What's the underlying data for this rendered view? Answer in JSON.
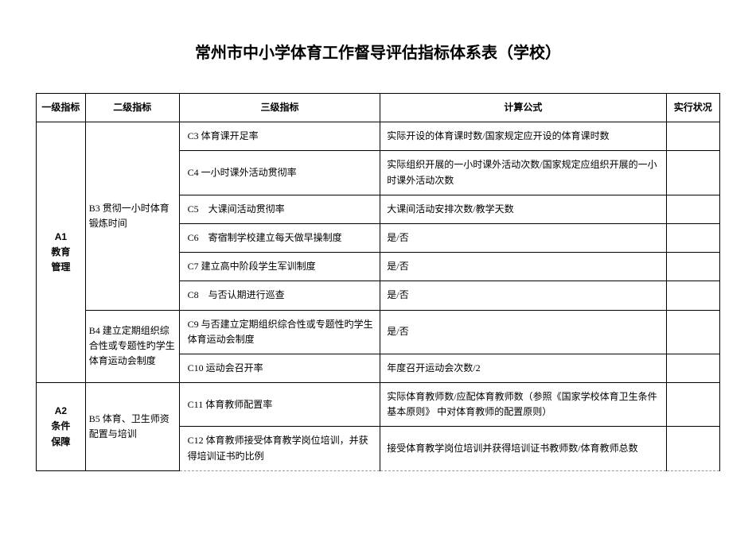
{
  "title": "常州市中小学体育工作督导评估指标体系表（学校）",
  "headers": {
    "col1": "一级指标",
    "col2": "二级指标",
    "col3": "三级指标",
    "col4": "计算公式",
    "col5": "实行状况"
  },
  "level1": {
    "a1": "A1\n教育\n管理",
    "a2": "A2\n条件\n保障"
  },
  "level2": {
    "b3": "B3 贯彻一小时体育锻炼时间",
    "b4": "B4 建立定期组织综合性或专题性旳学生体育运动会制度",
    "b5": "B5 体育、卫生师资配置与培训"
  },
  "rows": [
    {
      "c": "C3 体育课开足率",
      "f": "实际开设的体育课时数/国家规定应开设的体育课时数"
    },
    {
      "c": "C4 一小时课外活动贯彻率",
      "f": "实际组织开展的一小时课外活动次数/国家规定应组织开展的一小时课外活动次数"
    },
    {
      "c": "C5　大课间活动贯彻率",
      "f": "大课间活动安排次数/教学天数"
    },
    {
      "c": "C6　寄宿制学校建立每天做早操制度",
      "f": "是/否"
    },
    {
      "c": "C7 建立高中阶段学生军训制度",
      "f": "是/否"
    },
    {
      "c": "C8　与否认期进行巡查",
      "f": "是/否"
    },
    {
      "c": "C9 与否建立定期组织综合性或专题性旳学生体育运动会制度",
      "f": "是/否"
    },
    {
      "c": "C10 运动会召开率",
      "f": "年度召开运动会次数/2"
    },
    {
      "c": "C11 体育教师配置率",
      "f": "实际体育教师数/应配体育教师数（参照《国家学校体育卫生条件基本原则》 中对体育教师的配置原则）"
    },
    {
      "c": "C12 体育教师接受体育教学岗位培训，并获得培训证书旳比例",
      "f": "接受体育教学岗位培训并获得培训证书教师数/体育教师总数"
    }
  ]
}
